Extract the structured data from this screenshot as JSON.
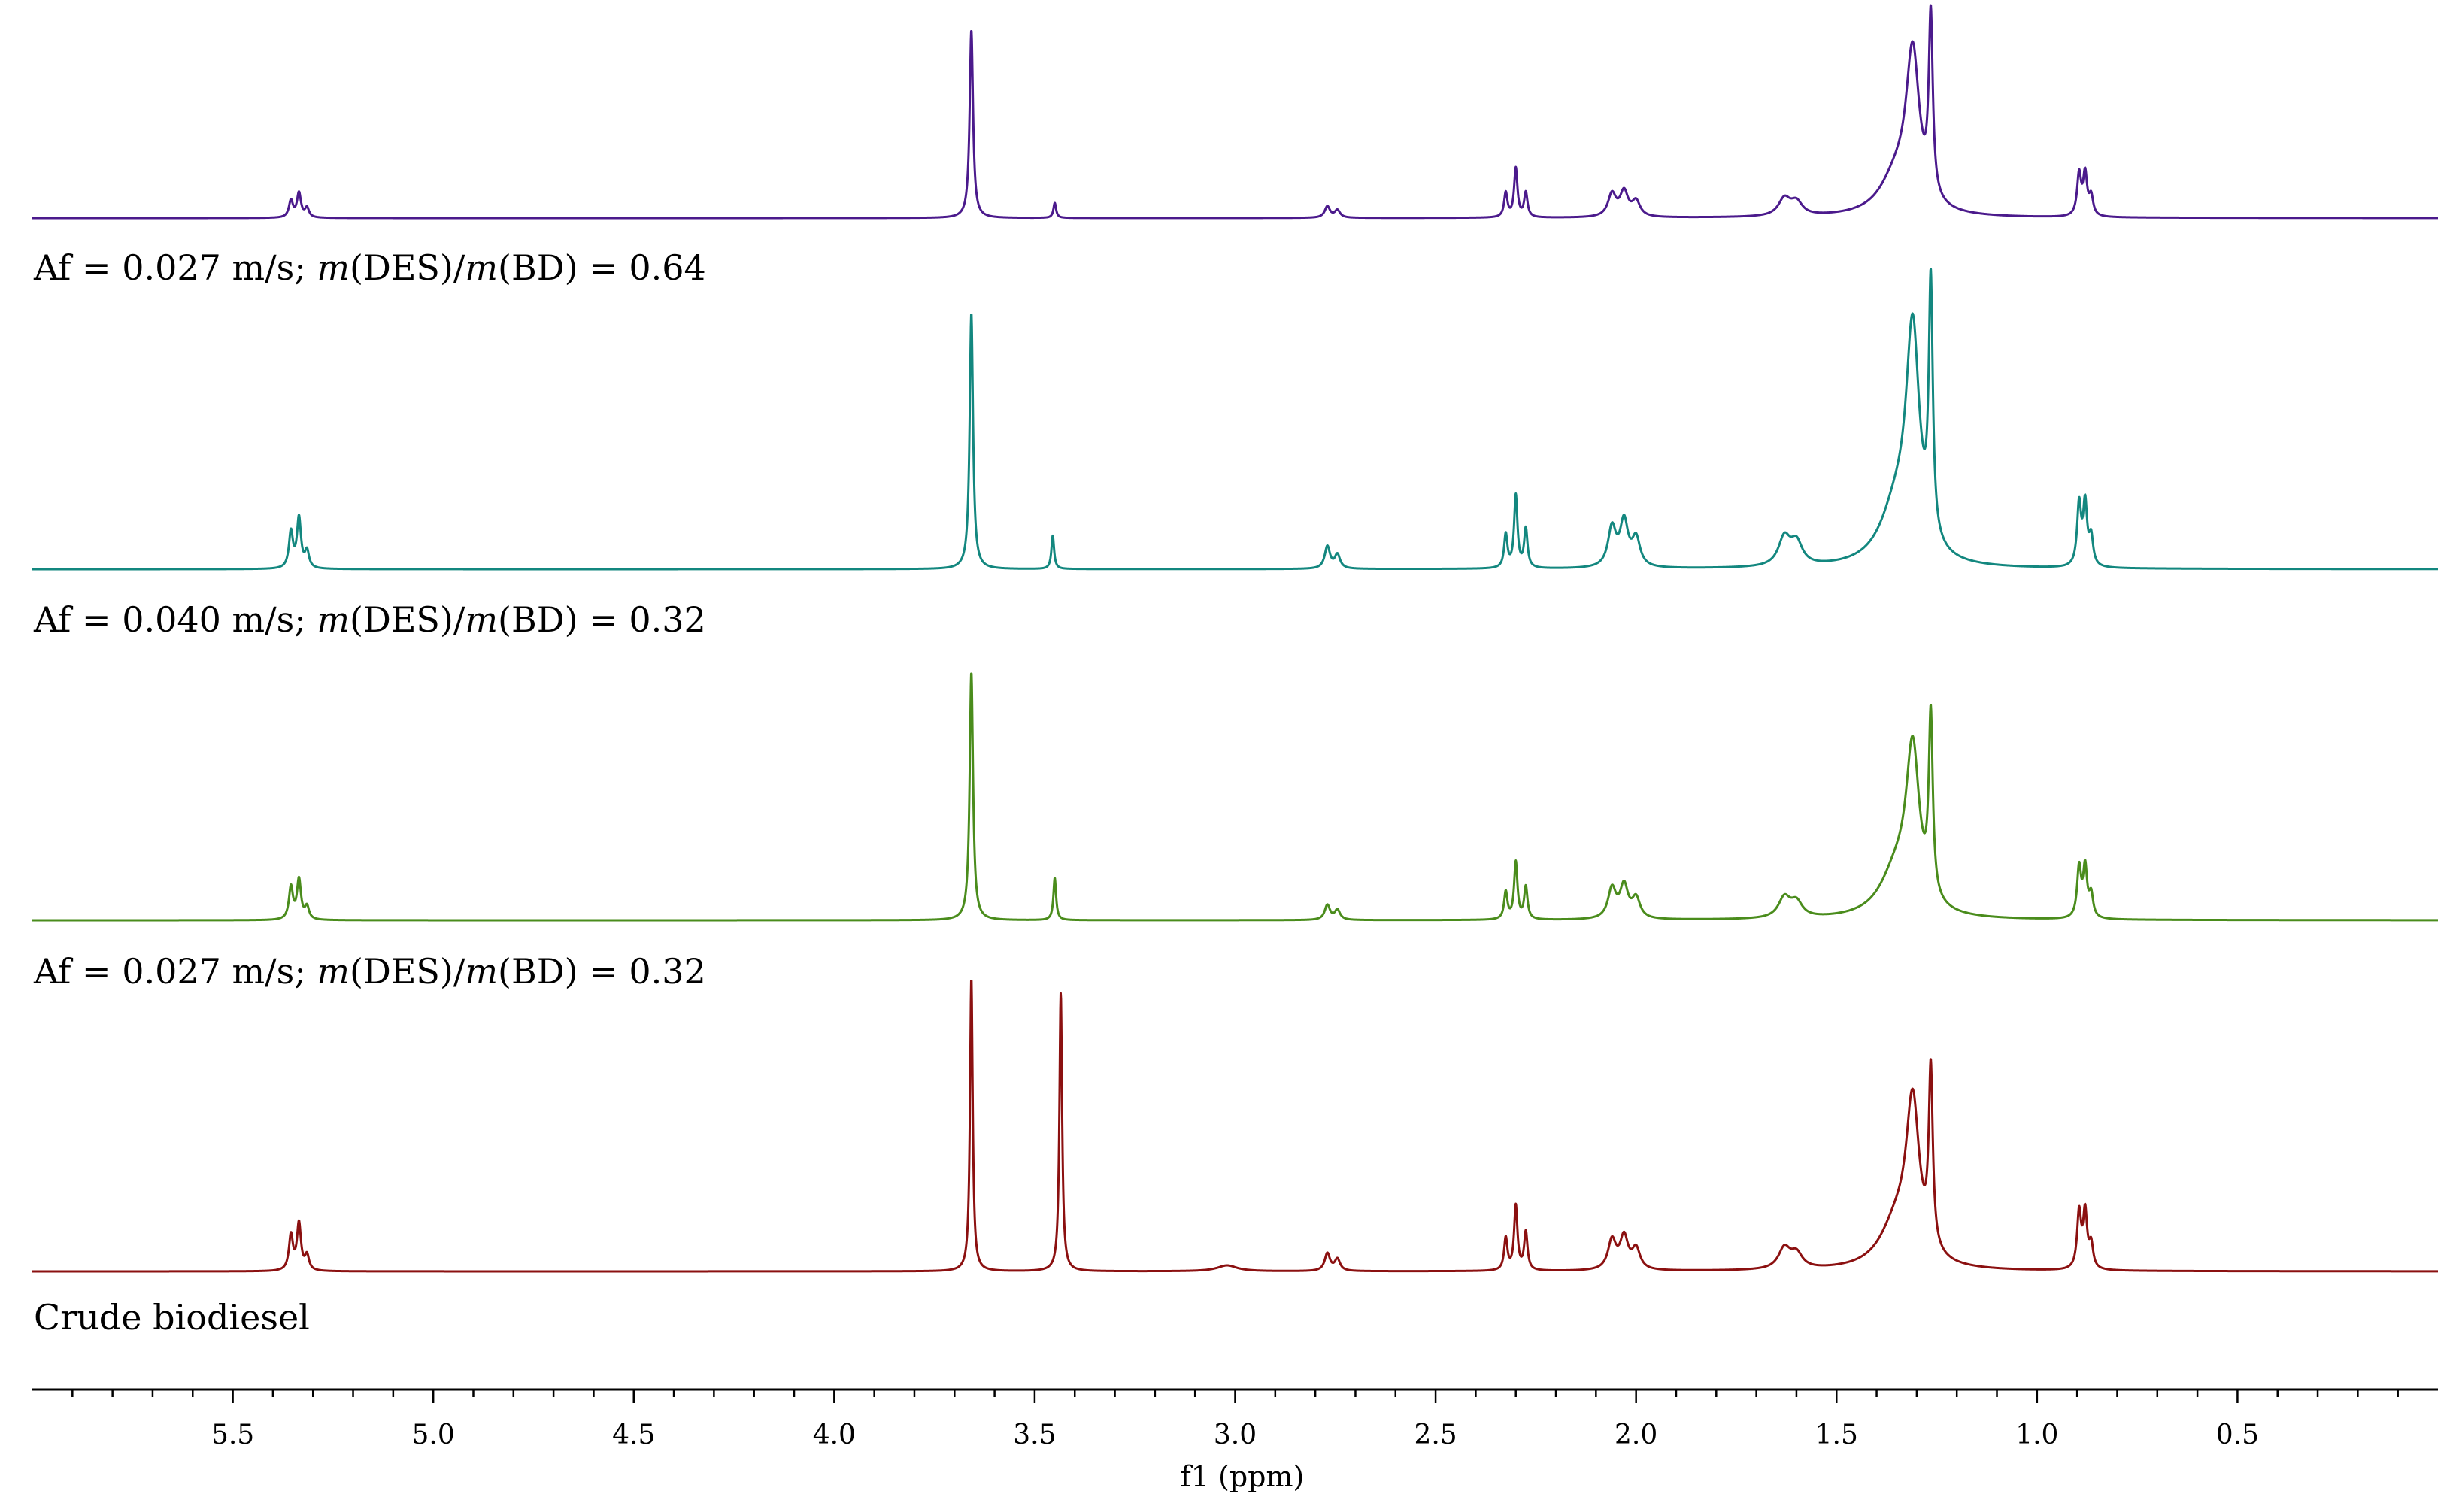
{
  "chart_data": {
    "type": "line",
    "xlabel": "f1 (ppm)",
    "xlim": [
      6.0,
      0.0
    ],
    "x_reversed": true,
    "x_ticks": [
      "5.5",
      "5.0",
      "4.5",
      "4.0",
      "3.5",
      "3.0",
      "2.5",
      "2.0",
      "1.5",
      "1.0",
      "0.5"
    ],
    "x_tick_values": [
      5.5,
      5.0,
      4.5,
      4.0,
      3.5,
      3.0,
      2.5,
      2.0,
      1.5,
      1.0,
      0.5
    ],
    "minor_tick_step": 0.1,
    "series": [
      {
        "label_parts": [
          "Af = 0.027 m/s; ",
          "m",
          "(DES)/",
          "m",
          "(BD) = 0.64"
        ],
        "color": "#4B1A8C",
        "peaks": [
          {
            "ppm": 5.355,
            "height": 0.09,
            "width": 0.006
          },
          {
            "ppm": 5.335,
            "height": 0.13,
            "width": 0.006
          },
          {
            "ppm": 5.315,
            "height": 0.05,
            "width": 0.006
          },
          {
            "ppm": 3.658,
            "height": 1.0,
            "width": 0.005
          },
          {
            "ppm": 3.45,
            "height": 0.08,
            "width": 0.004
          },
          {
            "ppm": 2.77,
            "height": 0.06,
            "width": 0.008
          },
          {
            "ppm": 2.745,
            "height": 0.04,
            "width": 0.008
          },
          {
            "ppm": 2.325,
            "height": 0.13,
            "width": 0.005
          },
          {
            "ppm": 2.3,
            "height": 0.26,
            "width": 0.005
          },
          {
            "ppm": 2.275,
            "height": 0.13,
            "width": 0.005
          },
          {
            "ppm": 2.06,
            "height": 0.12,
            "width": 0.012
          },
          {
            "ppm": 2.03,
            "height": 0.13,
            "width": 0.012
          },
          {
            "ppm": 2.0,
            "height": 0.08,
            "width": 0.012
          },
          {
            "ppm": 1.63,
            "height": 0.09,
            "width": 0.018
          },
          {
            "ppm": 1.6,
            "height": 0.07,
            "width": 0.018
          },
          {
            "ppm": 1.31,
            "height": 0.8,
            "width": 0.02
          },
          {
            "ppm": 1.265,
            "height": 0.95,
            "width": 0.006
          },
          {
            "ppm": 1.35,
            "height": 0.2,
            "width": 0.05
          },
          {
            "ppm": 0.895,
            "height": 0.22,
            "width": 0.006
          },
          {
            "ppm": 0.88,
            "height": 0.22,
            "width": 0.006
          },
          {
            "ppm": 0.865,
            "height": 0.1,
            "width": 0.006
          }
        ]
      },
      {
        "label_parts": [
          "Af = 0.040 m/s; ",
          "m",
          "(DES)/",
          "m",
          "(BD) = 0.32"
        ],
        "color": "#13877F",
        "peaks": [
          {
            "ppm": 5.355,
            "height": 0.13,
            "width": 0.006
          },
          {
            "ppm": 5.335,
            "height": 0.18,
            "width": 0.006
          },
          {
            "ppm": 5.315,
            "height": 0.06,
            "width": 0.006
          },
          {
            "ppm": 3.658,
            "height": 0.92,
            "width": 0.005
          },
          {
            "ppm": 3.455,
            "height": 0.12,
            "width": 0.004
          },
          {
            "ppm": 2.77,
            "height": 0.08,
            "width": 0.008
          },
          {
            "ppm": 2.745,
            "height": 0.05,
            "width": 0.008
          },
          {
            "ppm": 2.325,
            "height": 0.12,
            "width": 0.005
          },
          {
            "ppm": 2.3,
            "height": 0.26,
            "width": 0.005
          },
          {
            "ppm": 2.275,
            "height": 0.14,
            "width": 0.005
          },
          {
            "ppm": 2.06,
            "height": 0.14,
            "width": 0.012
          },
          {
            "ppm": 2.03,
            "height": 0.16,
            "width": 0.012
          },
          {
            "ppm": 2.0,
            "height": 0.1,
            "width": 0.012
          },
          {
            "ppm": 1.63,
            "height": 0.1,
            "width": 0.018
          },
          {
            "ppm": 1.6,
            "height": 0.08,
            "width": 0.018
          },
          {
            "ppm": 1.31,
            "height": 0.78,
            "width": 0.02
          },
          {
            "ppm": 1.265,
            "height": 0.9,
            "width": 0.006
          },
          {
            "ppm": 1.35,
            "height": 0.2,
            "width": 0.05
          },
          {
            "ppm": 0.895,
            "height": 0.22,
            "width": 0.006
          },
          {
            "ppm": 0.88,
            "height": 0.22,
            "width": 0.006
          },
          {
            "ppm": 0.865,
            "height": 0.1,
            "width": 0.006
          }
        ]
      },
      {
        "label_parts": [
          "Af = 0.027 m/s; ",
          "m",
          "(DES)/",
          "m",
          "(BD) = 0.32"
        ],
        "color": "#4A8C1C",
        "peaks": [
          {
            "ppm": 5.355,
            "height": 0.13,
            "width": 0.006
          },
          {
            "ppm": 5.335,
            "height": 0.16,
            "width": 0.006
          },
          {
            "ppm": 5.315,
            "height": 0.05,
            "width": 0.006
          },
          {
            "ppm": 3.658,
            "height": 1.0,
            "width": 0.005
          },
          {
            "ppm": 3.45,
            "height": 0.17,
            "width": 0.004
          },
          {
            "ppm": 2.77,
            "height": 0.06,
            "width": 0.008
          },
          {
            "ppm": 2.745,
            "height": 0.04,
            "width": 0.008
          },
          {
            "ppm": 2.325,
            "height": 0.11,
            "width": 0.005
          },
          {
            "ppm": 2.3,
            "height": 0.23,
            "width": 0.005
          },
          {
            "ppm": 2.275,
            "height": 0.13,
            "width": 0.005
          },
          {
            "ppm": 2.06,
            "height": 0.12,
            "width": 0.012
          },
          {
            "ppm": 2.03,
            "height": 0.13,
            "width": 0.012
          },
          {
            "ppm": 2.0,
            "height": 0.08,
            "width": 0.012
          },
          {
            "ppm": 1.63,
            "height": 0.08,
            "width": 0.018
          },
          {
            "ppm": 1.6,
            "height": 0.06,
            "width": 0.018
          },
          {
            "ppm": 1.31,
            "height": 0.62,
            "width": 0.02
          },
          {
            "ppm": 1.265,
            "height": 0.72,
            "width": 0.006
          },
          {
            "ppm": 1.35,
            "height": 0.18,
            "width": 0.05
          },
          {
            "ppm": 0.895,
            "height": 0.2,
            "width": 0.006
          },
          {
            "ppm": 0.88,
            "height": 0.2,
            "width": 0.006
          },
          {
            "ppm": 0.865,
            "height": 0.09,
            "width": 0.006
          }
        ]
      },
      {
        "label_parts": [
          "Crude biodiesel"
        ],
        "color": "#8B1010",
        "peaks": [
          {
            "ppm": 5.355,
            "height": 0.12,
            "width": 0.006
          },
          {
            "ppm": 5.335,
            "height": 0.16,
            "width": 0.006
          },
          {
            "ppm": 5.315,
            "height": 0.05,
            "width": 0.006
          },
          {
            "ppm": 3.658,
            "height": 1.0,
            "width": 0.004
          },
          {
            "ppm": 3.435,
            "height": 0.95,
            "width": 0.004
          },
          {
            "ppm": 3.02,
            "height": 0.02,
            "width": 0.03
          },
          {
            "ppm": 2.77,
            "height": 0.06,
            "width": 0.008
          },
          {
            "ppm": 2.745,
            "height": 0.04,
            "width": 0.008
          },
          {
            "ppm": 2.325,
            "height": 0.11,
            "width": 0.005
          },
          {
            "ppm": 2.3,
            "height": 0.22,
            "width": 0.005
          },
          {
            "ppm": 2.275,
            "height": 0.13,
            "width": 0.005
          },
          {
            "ppm": 2.06,
            "height": 0.1,
            "width": 0.012
          },
          {
            "ppm": 2.03,
            "height": 0.11,
            "width": 0.012
          },
          {
            "ppm": 2.0,
            "height": 0.07,
            "width": 0.012
          },
          {
            "ppm": 1.63,
            "height": 0.07,
            "width": 0.018
          },
          {
            "ppm": 1.6,
            "height": 0.05,
            "width": 0.018
          },
          {
            "ppm": 1.31,
            "height": 0.52,
            "width": 0.02
          },
          {
            "ppm": 1.265,
            "height": 0.6,
            "width": 0.006
          },
          {
            "ppm": 1.35,
            "height": 0.15,
            "width": 0.05
          },
          {
            "ppm": 0.895,
            "height": 0.19,
            "width": 0.006
          },
          {
            "ppm": 0.88,
            "height": 0.19,
            "width": 0.006
          },
          {
            "ppm": 0.865,
            "height": 0.08,
            "width": 0.006
          }
        ]
      }
    ]
  }
}
